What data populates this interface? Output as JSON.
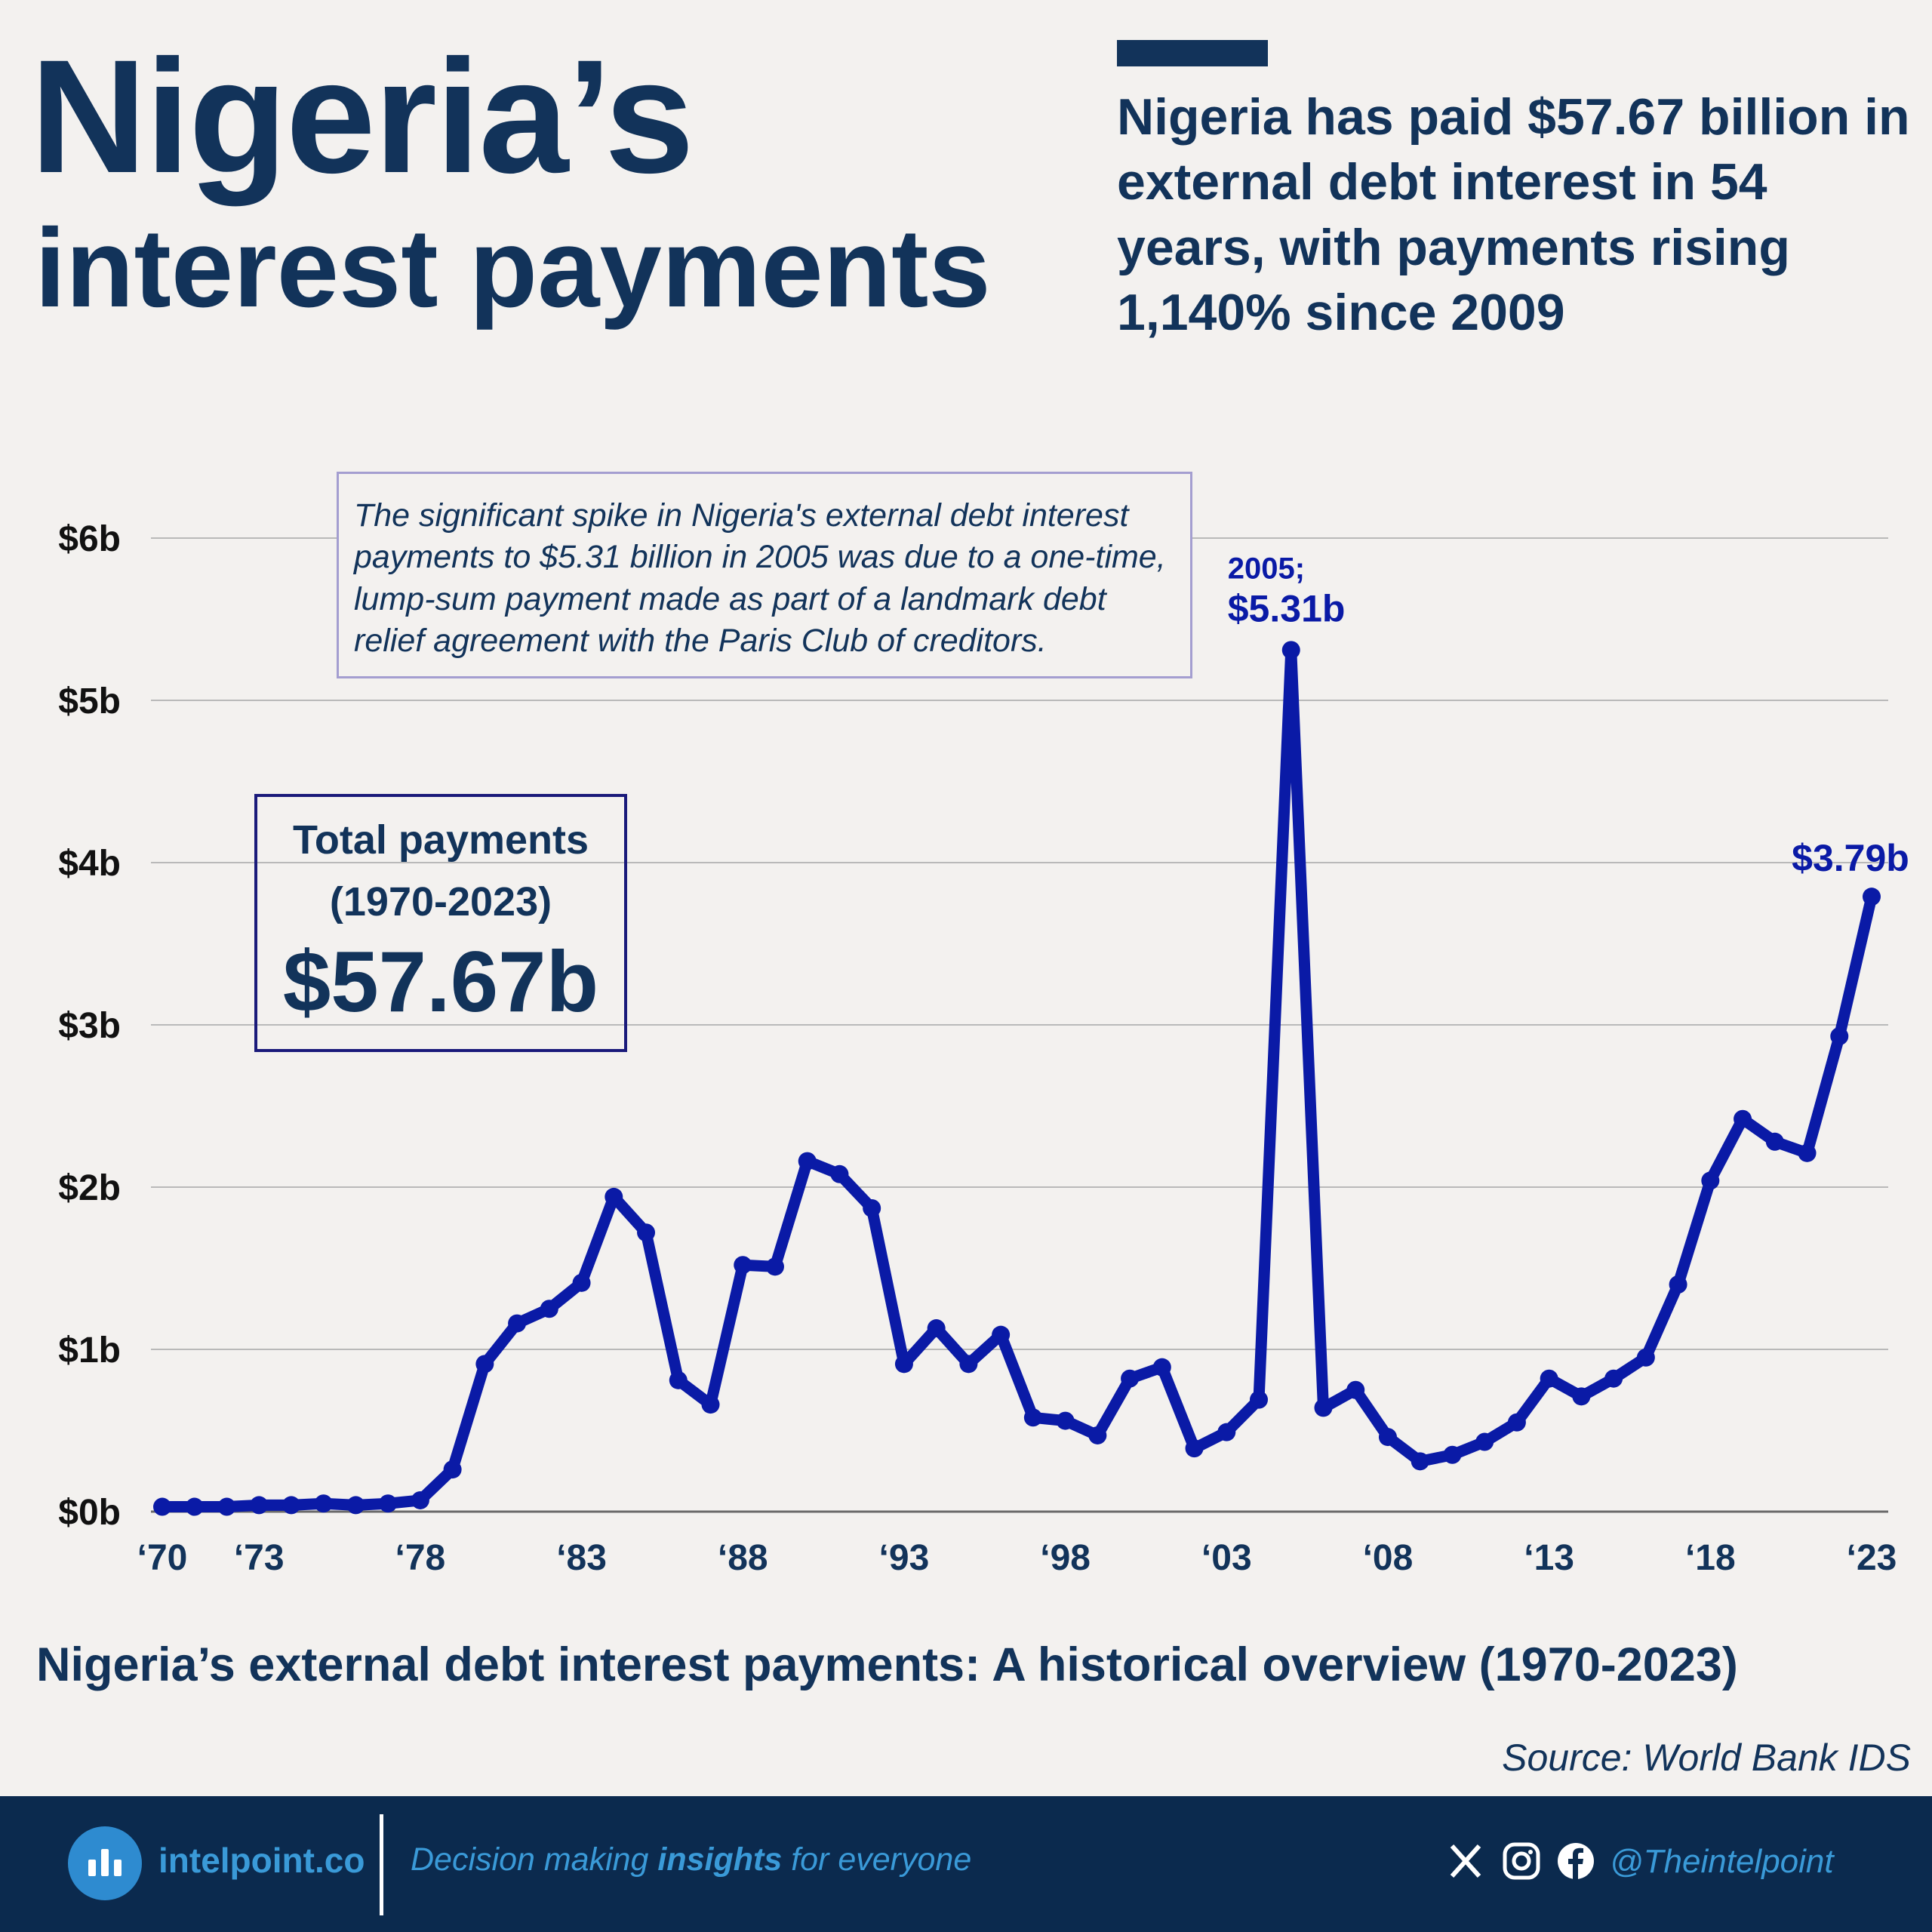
{
  "header": {
    "title_line1": "Nigeria’s",
    "title_line2": "interest payments",
    "headline": "Nigeria has paid $57.67 billion in external debt interest in 54 years, with payments rising 1,140% since 2009"
  },
  "note": "The significant spike in Nigeria's external debt interest payments to $5.31 billion in 2005 was due to a one-time, lump-sum payment made as part of a landmark debt relief agreement with the Paris Club of creditors.",
  "total_box": {
    "label_line1": "Total payments",
    "label_line2": "(1970-2023)",
    "value": "$57.67b"
  },
  "chart_data": {
    "type": "line",
    "title": "Nigeria’s external debt interest payments: A historical overview (1970-2023)",
    "xlabel": "",
    "ylabel": "",
    "ylim": [
      0,
      6
    ],
    "grid": true,
    "y_ticks": [
      0,
      1,
      2,
      3,
      4,
      5,
      6
    ],
    "y_tick_labels": [
      "$0b",
      "$1b",
      "$2b",
      "$3b",
      "$4b",
      "$5b",
      "$6b"
    ],
    "x_ticks": [
      1970,
      1973,
      1978,
      1983,
      1988,
      1993,
      1998,
      2003,
      2008,
      2013,
      2018,
      2023
    ],
    "x_tick_labels": [
      "‘70",
      "‘73",
      "‘78",
      "‘83",
      "‘88",
      "‘93",
      "‘98",
      "‘03",
      "‘08",
      "‘13",
      "‘18",
      "‘23"
    ],
    "series_color": "#0a1aa6",
    "series": [
      {
        "x": [
          1970,
          1971,
          1972,
          1973,
          1974,
          1975,
          1976,
          1977,
          1978,
          1979,
          1980,
          1981,
          1982,
          1983,
          1984,
          1985,
          1986,
          1987,
          1988,
          1989,
          1990,
          1991,
          1992,
          1993,
          1994,
          1995,
          1996,
          1997,
          1998,
          1999,
          2000,
          2001,
          2002,
          2003,
          2004,
          2005,
          2006,
          2007,
          2008,
          2009,
          2010,
          2011,
          2012,
          2013,
          2014,
          2015,
          2016,
          2017,
          2018,
          2019,
          2020,
          2021,
          2022,
          2023
        ],
        "values": [
          0.03,
          0.03,
          0.03,
          0.04,
          0.04,
          0.05,
          0.04,
          0.05,
          0.07,
          0.26,
          0.91,
          1.16,
          1.25,
          1.41,
          1.94,
          1.72,
          0.81,
          0.66,
          1.52,
          1.51,
          2.16,
          2.08,
          1.87,
          0.91,
          1.13,
          0.91,
          1.09,
          0.58,
          0.56,
          0.47,
          0.82,
          0.89,
          0.39,
          0.49,
          0.69,
          5.31,
          0.64,
          0.75,
          0.46,
          0.31,
          0.35,
          0.43,
          0.55,
          0.82,
          0.71,
          0.82,
          0.95,
          1.4,
          2.04,
          2.42,
          2.28,
          2.21,
          2.93,
          3.79
        ]
      }
    ],
    "annotations": [
      {
        "year_label": "2005;",
        "value_label": "$5.31b"
      },
      {
        "value_label": "$3.79b"
      }
    ]
  },
  "source": "Source: World Bank IDS",
  "footer": {
    "brand": "intelpoint.co",
    "tagline_pre": "Decision making ",
    "tagline_bold": "insights",
    "tagline_post": " for everyone",
    "handle": "@Theintelpoint",
    "icons": [
      "x-icon",
      "instagram-icon",
      "facebook-icon"
    ]
  }
}
